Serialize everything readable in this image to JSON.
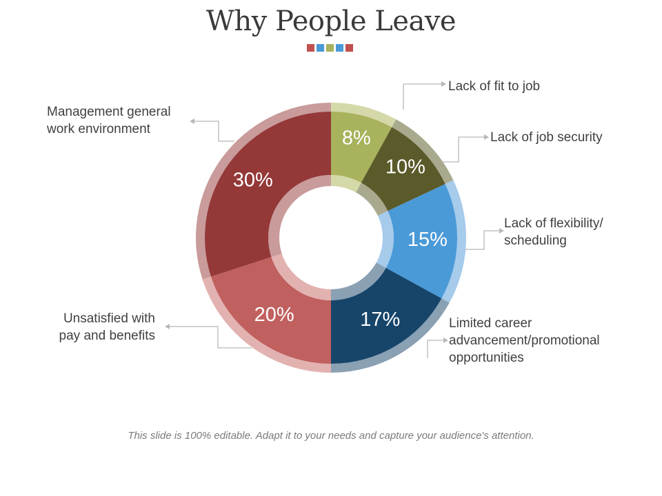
{
  "slide": {
    "title": "Why People Leave",
    "footer": "This slide is 100% editable. Adapt it to your needs and capture your audience's attention.",
    "title_square_colors": [
      "#c0504d",
      "#4a9ad8",
      "#a9b25c",
      "#4a9ad8",
      "#c0504d"
    ]
  },
  "chart_data": {
    "type": "pie",
    "subtype": "donut",
    "title": "",
    "slices": [
      {
        "label": "Lack of fit to job",
        "value": 8,
        "display": "8%",
        "color": "#a9b25c",
        "light": "#d5d9a9"
      },
      {
        "label": "Lack of job security",
        "value": 10,
        "display": "10%",
        "color": "#5a5a2a",
        "light": "#a9a98e"
      },
      {
        "label": "Lack of flexibility/ scheduling",
        "value": 15,
        "display": "15%",
        "color": "#4a9ad8",
        "light": "#a6cbeb"
      },
      {
        "label": "Limited career advancement/promotional opportunities",
        "value": 17,
        "display": "17%",
        "color": "#17456a",
        "light": "#8aa0b3"
      },
      {
        "label": "Unsatisfied with pay and benefits",
        "value": 20,
        "display": "20%",
        "color": "#c0605f",
        "light": "#e2b2b1"
      },
      {
        "label": "Management general work environment",
        "value": 30,
        "display": "30%",
        "color": "#943838",
        "light": "#c99b9b"
      }
    ],
    "label_lines": [
      [
        "Lack of fit to job"
      ],
      [
        "Lack of job security"
      ],
      [
        "Lack of flexibility/",
        "scheduling"
      ],
      [
        "Limited career",
        "advancement/promotional",
        "opportunities"
      ],
      [
        "Unsatisfied with",
        "pay and benefits"
      ],
      [
        "Management general",
        "work environment"
      ]
    ]
  }
}
